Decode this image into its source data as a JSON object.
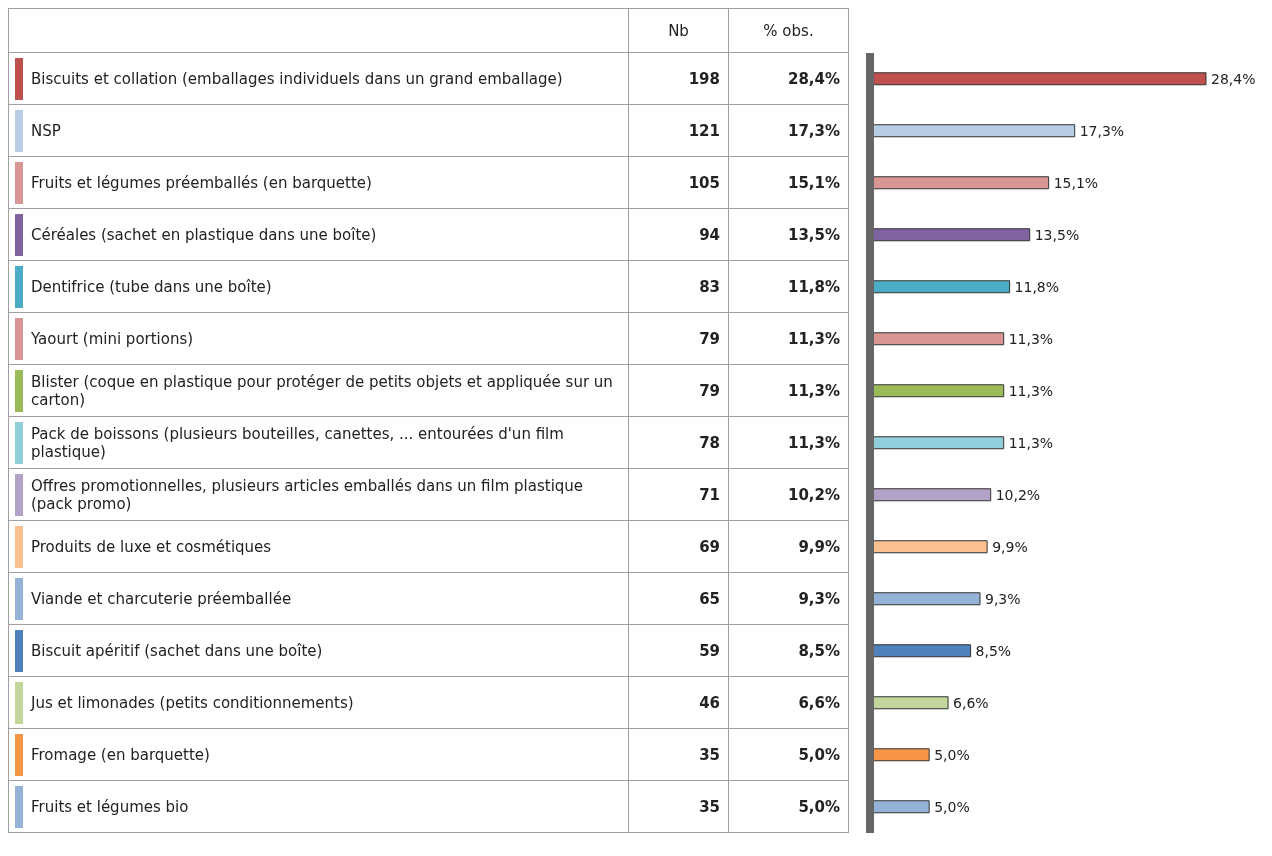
{
  "chart_data": [
    {
      "type": "other",
      "title": "Nb",
      "data_labels": true,
      "categories": [
        "Biscuits et collation (emballages individuels dans un grand emballage)",
        "NSP",
        "Fruits et légumes préemballés (en barquette)",
        "Céréales (sachet en plastique dans une boîte)",
        "Dentifrice (tube dans une boîte)",
        "Yaourt (mini portions)",
        "Blister (coque en plastique pour protéger de petits objets et appliquée sur un carton)",
        "Pack de boissons (plusieurs bouteilles, canettes, ... entourées d'un film plastique)",
        "Offres promotionnelles, plusieurs articles emballés dans un film plastique (pack promo)",
        "Produits de luxe et cosmétiques",
        "Viande et charcuterie préemballée",
        "Biscuit apéritif (sachet dans une boîte)",
        "Jus et limonades (petits conditionnements)",
        "Fromage (en barquette)",
        "Fruits et légumes bio"
      ],
      "values": [
        198,
        121,
        105,
        94,
        83,
        79,
        79,
        78,
        71,
        69,
        65,
        59,
        46,
        35,
        35
      ],
      "colors": [
        "#c0504d",
        "#b9cde5",
        "#d99694",
        "#8064a2",
        "#4bacc6",
        "#d99694",
        "#9bbb59",
        "#92cddc",
        "#b3a2c7",
        "#fac090",
        "#95b3d7",
        "#4f81bd",
        "#c3d69b",
        "#f79646",
        "#95b3d7"
      ]
    },
    {
      "type": "bar",
      "orientation": "horizontal",
      "title": "% obs.",
      "categories": [
        null,
        null,
        null,
        null,
        null,
        null,
        null,
        null,
        null,
        null,
        null,
        null,
        null,
        null,
        null
      ],
      "values": [
        28.4,
        17.3,
        15.1,
        13.5,
        11.8,
        11.3,
        11.3,
        11.3,
        10.2,
        9.9,
        9.3,
        8.5,
        6.6,
        5.0,
        5.0
      ],
      "value_labels": [
        "28,4%",
        "17,3%",
        "15,1%",
        "13,5%",
        "11,8%",
        "11,3%",
        "11,3%",
        "11,3%",
        "10,2%",
        "9,9%",
        "9,3%",
        "8,5%",
        "6,6%",
        "5,0%",
        "5,0%"
      ],
      "colors": [
        "#c0504d",
        "#b9cde5",
        "#d99694",
        "#8064a2",
        "#4bacc6",
        "#d99694",
        "#9bbb59",
        "#92cddc",
        "#b3a2c7",
        "#fac090",
        "#95b3d7",
        "#4f81bd",
        "#c3d69b",
        "#f79646",
        "#95b3d7"
      ]
    }
  ]
}
